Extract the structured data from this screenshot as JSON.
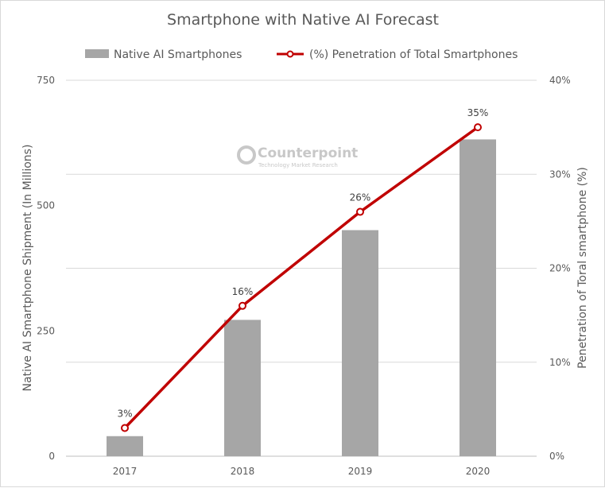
{
  "chart_data": {
    "type": "bar+line",
    "title": "Smartphone with Native AI Forecast",
    "categories": [
      "2017",
      "2018",
      "2019",
      "2020"
    ],
    "series": [
      {
        "name": "Native AI Smartphones",
        "type": "bar",
        "axis": "left",
        "values": [
          40,
          272,
          451,
          632
        ],
        "color": "#a6a6a6"
      },
      {
        "name": "(%) Penetration of Total Smartphones",
        "type": "line",
        "axis": "right",
        "values": [
          3,
          16,
          26,
          35
        ],
        "data_labels": [
          "3%",
          "16%",
          "26%",
          "35%"
        ],
        "color": "#c00000"
      }
    ],
    "ylabel_left": "Native AI Smartphone Shipment (In Millions)",
    "ylabel_right": "Penetration of Toral smartphone (%)",
    "ylim_left": [
      0,
      750
    ],
    "yticks_left": [
      "0",
      "250",
      "500",
      "750"
    ],
    "ylim_right": [
      0,
      40
    ],
    "yticks_right": [
      "0%",
      "10%",
      "20%",
      "30%",
      "40%"
    ],
    "grid": true,
    "legend_position": "top"
  },
  "watermark": {
    "name": "Counterpoint",
    "tagline": "Technology Market Research"
  }
}
